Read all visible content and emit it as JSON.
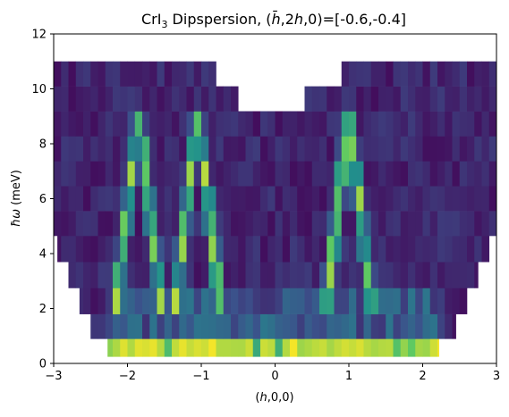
{
  "chart_data": {
    "type": "heatmap",
    "title": "CrI₃ Dipspersion, (h̄,2h,0)=[-0.6,-0.4]",
    "xlabel": "(h,0,0)",
    "ylabel": "ħω (meV)",
    "xlim": [
      -3,
      3
    ],
    "ylim": [
      0,
      12
    ],
    "xticks": [
      "−3",
      "−2",
      "−1",
      "0",
      "1",
      "2",
      "3"
    ],
    "yticks": [
      "0",
      "2",
      "4",
      "6",
      "8",
      "10",
      "12"
    ],
    "colormap": "viridis",
    "energy_bands": [
      {
        "e0": 0.0,
        "e1": 0.25,
        "xmin": null,
        "xmax": null
      },
      {
        "e0": 0.25,
        "e1": 0.9,
        "xmin": -2.27,
        "xmax": 2.22
      },
      {
        "e0": 0.9,
        "e1": 1.8,
        "xmin": -2.5,
        "xmax": 2.45
      },
      {
        "e0": 1.8,
        "e1": 2.75,
        "xmin": -2.65,
        "xmax": 2.6
      },
      {
        "e0": 2.75,
        "e1": 3.7,
        "xmin": -2.8,
        "xmax": 2.75
      },
      {
        "e0": 3.7,
        "e1": 4.65,
        "xmin": -2.95,
        "xmax": 2.9
      },
      {
        "e0": 4.65,
        "e1": 11.0,
        "xmin": -3.0,
        "xmax": 3.0
      }
    ],
    "top_gap": {
      "e_from": 9.3,
      "e_to": 11.0,
      "xmin": -0.5,
      "xmax": 0.45,
      "shoulder_xmin": -0.75,
      "shoulder_xmax": 0.45,
      "shoulder_e": 10.2
    },
    "dispersion_branches": [
      {
        "x": [
          -2.15,
          -2.05,
          -1.95,
          -1.85,
          -1.75,
          -1.65,
          -1.55
        ],
        "e": [
          2.2,
          4.5,
          6.8,
          9.0,
          6.8,
          4.5,
          2.2
        ]
      },
      {
        "x": [
          -1.35,
          -1.25,
          -1.15,
          -1.05,
          -0.95,
          -0.85,
          -0.75
        ],
        "e": [
          2.2,
          4.5,
          6.8,
          9.0,
          6.8,
          4.5,
          2.2
        ]
      },
      {
        "x": [
          0.7,
          0.8,
          0.9,
          1.0,
          1.1,
          1.2,
          1.3
        ],
        "e": [
          2.2,
          4.5,
          6.8,
          9.0,
          6.8,
          4.5,
          2.2
        ]
      },
      {
        "x": [
          1.35,
          1.45,
          1.55
        ],
        "e": [
          2.2,
          1.8,
          1.4
        ]
      }
    ],
    "elastic_line": {
      "e0": 0.0,
      "e1": 0.9,
      "intensity": "max"
    },
    "background_intensity": "low"
  }
}
